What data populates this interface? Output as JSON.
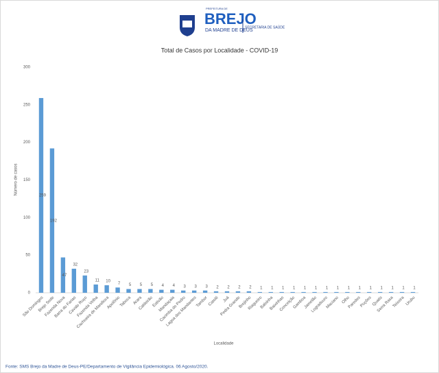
{
  "header": {
    "line1": "PREFEITURA DE",
    "line2": "BREJO",
    "line3": "DA MADRE DE DEUS",
    "line4": "SECRETARIA DE SAÚDE"
  },
  "chart_data": {
    "type": "bar",
    "title": "Total de Casos por Localidade - COVID-19",
    "x_label": "Localidade",
    "y_label": "Número de casos",
    "categories": [
      "São Domingos",
      "Brejo Sede",
      "Fazenda Nova",
      "Barra do Farias",
      "Cavalo Ruço",
      "Fazenda Velha",
      "Cachoeira de Mandioca",
      "Apolônio",
      "Taboca",
      "Arara",
      "Caldeirão",
      "Estivão",
      "Mandaçaia",
      "Cacimba do Pedro",
      "Lagoa dos Mandantes",
      "Tambor",
      "Catolé",
      "Juá",
      "Pedra Grande",
      "Brejinho",
      "Riagueiro",
      "Balsinha",
      "Baixinhas",
      "Conceição",
      "Gamboa",
      "Jamelão",
      "Logradouro",
      "Maciano",
      "Olho",
      "Paredes",
      "Poções",
      "Quatis",
      "Serra Rasa",
      "Teixeira",
      "Urubu"
    ],
    "values": [
      259,
      192,
      47,
      32,
      23,
      11,
      10,
      7,
      5,
      5,
      5,
      4,
      4,
      3,
      3,
      3,
      2,
      2,
      2,
      2,
      1,
      1,
      1,
      1,
      1,
      1,
      1,
      1,
      1,
      1,
      1,
      1,
      1,
      1,
      1
    ],
    "color": "#5b9bd5",
    "ylim": [
      0,
      300
    ],
    "yticks": [
      0,
      50,
      100,
      150,
      200,
      250,
      300
    ],
    "grid": false
  },
  "footer": {
    "source": "Fonte: SMS Brejo da Madre de Deus-PE/Departamento de Vigilância Epidemiológica. 06 Agosto/2020."
  }
}
